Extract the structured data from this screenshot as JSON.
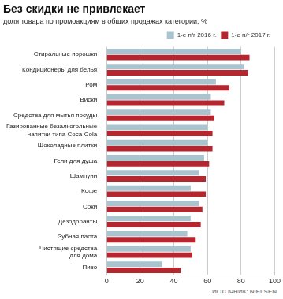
{
  "chart_data": {
    "type": "bar",
    "orientation": "horizontal",
    "title": "Без скидки не привлекает",
    "subtitle": "доля товара по промоакциям в общих продажах категории, %",
    "annotations": [
      "ИСТОЧНИК: NIELSEN"
    ],
    "categories": [
      "Стиральные порошки",
      "Кондиционеры для белья",
      "Ром",
      "Виски",
      "Средства для мытья посуды",
      "Газированные безалкогольные\nнапитки типа Coca-Cola",
      "Шоколадные плитки",
      "Гели для душа",
      "Шампуни",
      "Кофе",
      "Соки",
      "Дезодоранты",
      "Зубная паста",
      "Чистящие средства\nдля дома",
      "Пиво"
    ],
    "series": [
      {
        "name": "1-е п/г 2016 г.",
        "color": "#a9c3cf",
        "values": [
          80,
          82,
          65,
          62,
          62,
          60,
          60,
          58,
          55,
          50,
          55,
          50,
          48,
          50,
          33
        ]
      },
      {
        "name": "1-е п/г 2017 г.",
        "color": "#b5262e",
        "values": [
          85,
          84,
          73,
          70,
          64,
          63,
          63,
          61,
          59,
          59,
          57,
          56,
          53,
          51,
          44
        ]
      }
    ],
    "xlim": [
      0,
      100
    ],
    "xticks": [
      0,
      20,
      40,
      60,
      80,
      100
    ],
    "grid": true,
    "legend": "top"
  }
}
